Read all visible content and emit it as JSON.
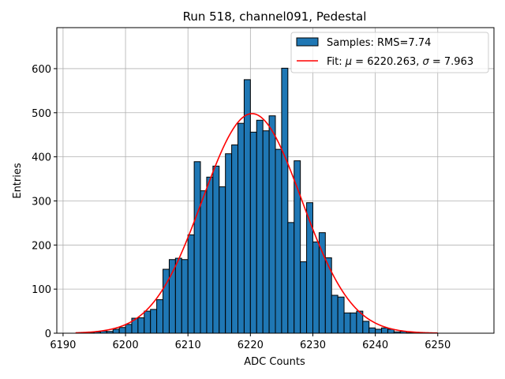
{
  "chart_data": {
    "type": "bar",
    "title": "Run 518, channel091, Pedestal",
    "xlabel": "ADC Counts",
    "ylabel": "Entries",
    "xlim": [
      6189,
      6259
    ],
    "ylim": [
      0,
      693
    ],
    "x_ticks": [
      6190,
      6200,
      6210,
      6220,
      6230,
      6240,
      6250
    ],
    "y_ticks": [
      0,
      100,
      200,
      300,
      400,
      500,
      600
    ],
    "grid": true,
    "legend_position": "top-right",
    "bin_width": 1,
    "series": [
      {
        "name": "Samples: RMS=7.74",
        "color": "#1f77b4",
        "bin_starts": [
          6193,
          6194,
          6195,
          6196,
          6197,
          6198,
          6199,
          6200,
          6201,
          6202,
          6203,
          6204,
          6205,
          6206,
          6207,
          6208,
          6209,
          6210,
          6211,
          6212,
          6213,
          6214,
          6215,
          6216,
          6217,
          6218,
          6219,
          6220,
          6221,
          6222,
          6223,
          6224,
          6225,
          6226,
          6227,
          6228,
          6229,
          6230,
          6231,
          6232,
          6233,
          6234,
          6235,
          6236,
          6237,
          6238,
          6239,
          6240,
          6241,
          6242,
          6243,
          6244,
          6245,
          6246
        ],
        "values": [
          1,
          1,
          3,
          5,
          4,
          9,
          13,
          20,
          34,
          35,
          50,
          54,
          76,
          145,
          167,
          170,
          167,
          223,
          389,
          323,
          354,
          379,
          332,
          407,
          427,
          476,
          575,
          456,
          483,
          459,
          493,
          417,
          601,
          251,
          391,
          162,
          296,
          207,
          228,
          171,
          86,
          82,
          46,
          46,
          50,
          27,
          12,
          9,
          12,
          9,
          3,
          4,
          1,
          1
        ]
      },
      {
        "name": "Fit: μ = 6220.263, σ = 7.963",
        "color": "#ff0000",
        "type": "line",
        "mu": 6220.263,
        "sigma": 7.963,
        "amplitude": 498,
        "x_range": [
          6192,
          6250
        ]
      }
    ]
  },
  "legend": {
    "hist_label": "Samples: RMS=7.74",
    "fit_prefix": "Fit: ",
    "mu_symbol": "μ",
    "mu_text": " = 6220.263, ",
    "sigma_symbol": "σ",
    "sigma_text": " = 7.963"
  }
}
